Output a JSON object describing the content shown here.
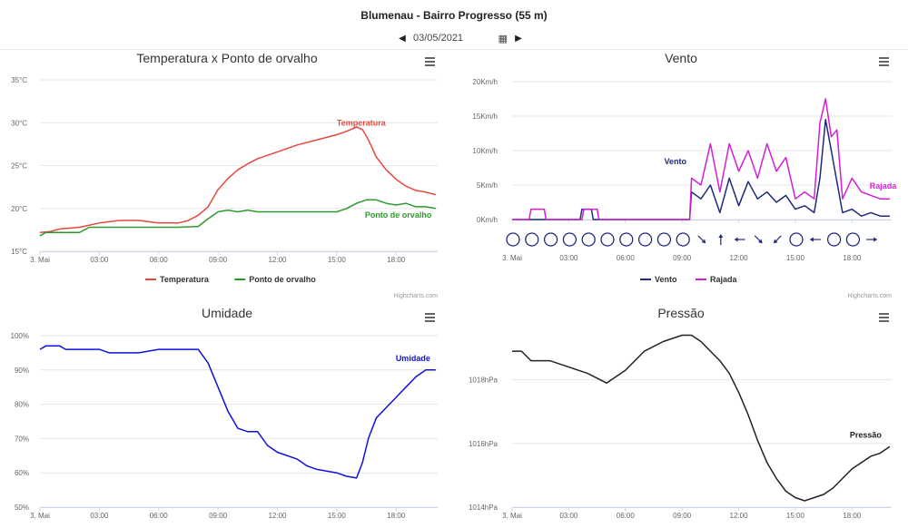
{
  "header": {
    "title": "Blumenau - Bairro Progresso (55 m)",
    "date": "03/05/2021"
  },
  "colors": {
    "temp": "#e8473f",
    "dew": "#2e9a2e",
    "wind": "#1f2a7a",
    "gust": "#d21fd6",
    "humidity": "#1010e0",
    "pressure": "#222222"
  },
  "credits": "Highcharts.com",
  "chart_data": [
    {
      "id": "temp",
      "type": "line",
      "title": "Temperatura x Ponto de orvalho",
      "x_ticks": [
        "3. Mai",
        "03:00",
        "06:00",
        "09:00",
        "12:00",
        "15:00",
        "18:00"
      ],
      "xlim": [
        0,
        20.1
      ],
      "y_ticks": [
        "15°C",
        "20°C",
        "25°C",
        "30°C",
        "35°C"
      ],
      "y_tick_values": [
        15,
        20,
        25,
        30,
        35
      ],
      "ylim": [
        15,
        35
      ],
      "legend_position": "bottom",
      "series": [
        {
          "name": "Temperatura",
          "color_key": "temp",
          "label": "Temperatura",
          "x": [
            0,
            0.5,
            1,
            2,
            3,
            4,
            5,
            6,
            7,
            7.5,
            8,
            8.5,
            9,
            9.5,
            10,
            10.5,
            11,
            12,
            13,
            14,
            15,
            15.5,
            16,
            16.3,
            16.6,
            17,
            17.5,
            18,
            18.5,
            19,
            19.5,
            20
          ],
          "y": [
            17.2,
            17.3,
            17.6,
            17.8,
            18.3,
            18.6,
            18.6,
            18.3,
            18.3,
            18.6,
            19.2,
            20.2,
            22.2,
            23.5,
            24.5,
            25.2,
            25.8,
            26.6,
            27.4,
            28.0,
            28.6,
            29.0,
            29.5,
            29.2,
            28.0,
            26.0,
            24.5,
            23.4,
            22.6,
            22.1,
            21.9,
            21.6
          ]
        },
        {
          "name": "Ponto de orvalho",
          "color_key": "dew",
          "label": "Ponto de orvalho",
          "x": [
            0,
            0.3,
            1,
            2,
            2.5,
            3,
            4,
            5,
            6,
            7,
            8,
            8.5,
            9,
            9.5,
            10,
            10.5,
            11,
            12,
            13,
            14,
            15,
            15.5,
            16,
            16.5,
            17,
            17.5,
            18,
            18.5,
            19,
            19.5,
            20
          ],
          "y": [
            16.8,
            17.2,
            17.2,
            17.2,
            17.8,
            17.8,
            17.8,
            17.8,
            17.8,
            17.8,
            17.9,
            18.8,
            19.6,
            19.8,
            19.6,
            19.8,
            19.6,
            19.6,
            19.6,
            19.6,
            19.6,
            20.0,
            20.6,
            21.0,
            21.0,
            20.6,
            20.4,
            20.6,
            20.2,
            20.2,
            20.0
          ]
        }
      ]
    },
    {
      "id": "wind",
      "type": "line",
      "title": "Vento",
      "x_ticks": [
        "3. Mai",
        "03:00",
        "06:00",
        "09:00",
        "12:00",
        "15:00",
        "18:00"
      ],
      "xlim": [
        0,
        20.1
      ],
      "y_ticks": [
        "0Km/h",
        "5Km/h",
        "10Km/h",
        "15Km/h",
        "20Km/h"
      ],
      "y_tick_values": [
        0,
        5,
        10,
        15,
        20
      ],
      "ylim": [
        0,
        20
      ],
      "legend_position": "bottom",
      "wind_direction_markers": [
        "calm",
        "calm",
        "calm",
        "calm",
        "calm",
        "calm",
        "calm",
        "calm",
        "calm",
        "calm",
        "SE",
        "N",
        "W",
        "SE",
        "SW",
        "calm",
        "W",
        "calm",
        "calm",
        "E"
      ],
      "series": [
        {
          "name": "Vento",
          "color_key": "wind",
          "label": "Vento",
          "x": [
            0,
            1,
            2,
            3,
            3.6,
            3.7,
            4.2,
            4.3,
            5,
            6,
            7,
            8,
            9.4,
            9.5,
            10,
            10.5,
            11,
            11.5,
            12,
            12.5,
            13,
            13.5,
            14,
            14.5,
            15,
            15.5,
            16,
            16.3,
            16.6,
            16.9,
            17.2,
            17.5,
            18,
            18.5,
            19,
            19.5,
            20
          ],
          "y": [
            0,
            0,
            0,
            0,
            0,
            1.5,
            1.5,
            0,
            0,
            0,
            0,
            0,
            0,
            4,
            3,
            5,
            1,
            6,
            2,
            5.5,
            3,
            4,
            2.5,
            3.5,
            1.5,
            2,
            1,
            6,
            14.5,
            10,
            5.5,
            1,
            1.5,
            0.5,
            1,
            0.5,
            0.5
          ]
        },
        {
          "name": "Rajada",
          "color_key": "gust",
          "label": "Rajada",
          "x": [
            0,
            0.9,
            1,
            1.7,
            1.8,
            2.6,
            3.7,
            3.8,
            4.5,
            4.6,
            6,
            8,
            9.4,
            9.5,
            10,
            10.5,
            11,
            11.5,
            12,
            12.5,
            13,
            13.5,
            14,
            14.5,
            15,
            15.5,
            16,
            16.3,
            16.6,
            16.9,
            17.2,
            17.5,
            18,
            18.5,
            19,
            19.5,
            20
          ],
          "y": [
            0,
            0,
            1.5,
            1.5,
            0,
            0,
            0,
            1.5,
            1.5,
            0,
            0,
            0,
            0,
            6,
            5,
            11,
            4,
            11,
            7,
            10,
            6,
            11,
            7,
            9,
            3,
            4,
            3,
            14,
            17.5,
            12,
            13,
            3,
            6,
            4,
            3.5,
            3,
            3
          ]
        }
      ]
    },
    {
      "id": "humidity",
      "type": "line",
      "title": "Umidade",
      "x_ticks": [
        "3. Mai",
        "03:00",
        "06:00",
        "09:00",
        "12:00",
        "15:00",
        "18:00"
      ],
      "xlim": [
        0,
        20.1
      ],
      "y_ticks": [
        "50%",
        "60%",
        "70%",
        "80%",
        "90%",
        "100%"
      ],
      "y_tick_values": [
        50,
        60,
        70,
        80,
        90,
        100
      ],
      "ylim": [
        50,
        100
      ],
      "legend_position": "none",
      "series": [
        {
          "name": "Umidade",
          "color_key": "humidity",
          "label": "Umidade",
          "x": [
            0,
            0.3,
            1,
            1.3,
            2,
            3,
            3.5,
            5,
            6,
            7,
            8,
            8.5,
            9,
            9.5,
            10,
            10.5,
            11,
            11.5,
            12,
            13,
            13.5,
            14,
            15,
            15.5,
            16,
            16.3,
            16.6,
            17,
            17.5,
            18,
            18.5,
            19,
            19.5,
            20
          ],
          "y": [
            96,
            97,
            97,
            96,
            96,
            96,
            95,
            95,
            96,
            96,
            96,
            92,
            85,
            78,
            73,
            72,
            72,
            68,
            66,
            64,
            62,
            61,
            60,
            59,
            58.5,
            63,
            70,
            76,
            79,
            82,
            85,
            88,
            90,
            90
          ]
        }
      ]
    },
    {
      "id": "pressure",
      "type": "line",
      "title": "Pressão",
      "x_ticks": [
        "3. Mai",
        "03:00",
        "06:00",
        "09:00",
        "12:00",
        "15:00",
        "18:00"
      ],
      "xlim": [
        0,
        20.1
      ],
      "y_ticks": [
        "1014hPa",
        "1016hPa",
        "1018hPa"
      ],
      "y_tick_values": [
        1014,
        1016,
        1018
      ],
      "ylim": [
        1014,
        1019.7
      ],
      "legend_position": "none",
      "series": [
        {
          "name": "Pressão",
          "color_key": "pressure",
          "label": "Pressão",
          "x": [
            0,
            0.5,
            1,
            2,
            3,
            4,
            5,
            6,
            7,
            8,
            9,
            9.5,
            10,
            10.5,
            11,
            11.5,
            12,
            12.5,
            13,
            13.5,
            14,
            14.5,
            15,
            15.5,
            16,
            16.5,
            17,
            17.5,
            18,
            18.5,
            19,
            19.5,
            20
          ],
          "y": [
            1018.9,
            1018.9,
            1018.6,
            1018.6,
            1018.4,
            1018.2,
            1017.9,
            1018.3,
            1018.9,
            1019.2,
            1019.4,
            1019.4,
            1019.2,
            1018.9,
            1018.6,
            1018.2,
            1017.6,
            1016.9,
            1016.1,
            1015.4,
            1014.9,
            1014.5,
            1014.3,
            1014.2,
            1014.3,
            1014.4,
            1014.6,
            1014.9,
            1015.2,
            1015.4,
            1015.6,
            1015.7,
            1015.9
          ]
        }
      ]
    }
  ]
}
